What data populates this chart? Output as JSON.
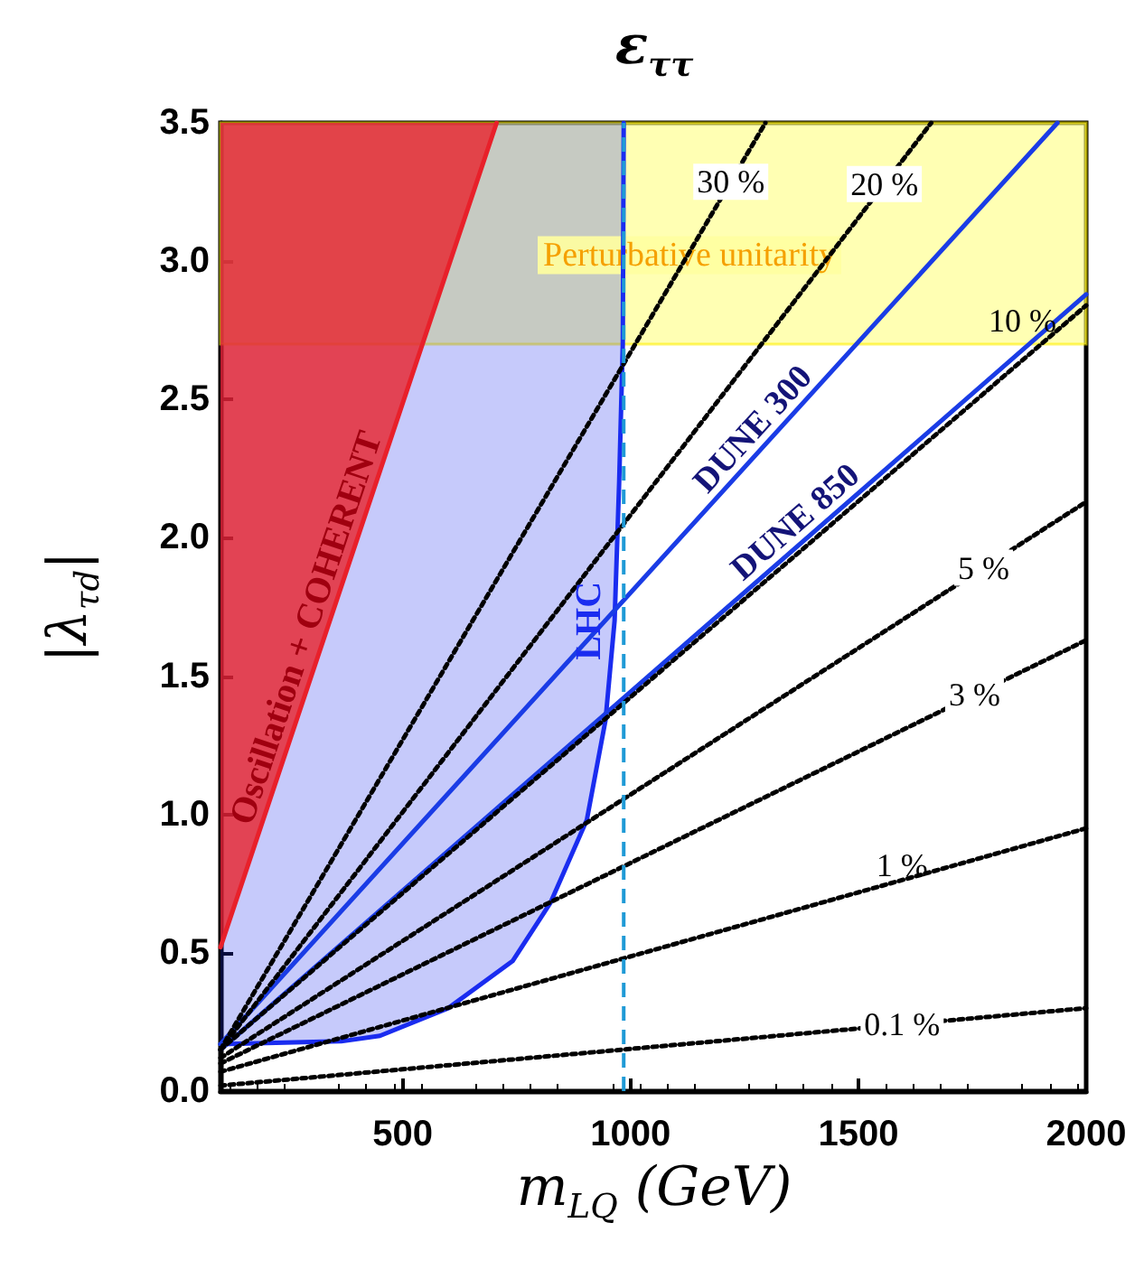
{
  "chart_data": {
    "type": "line",
    "title": "ε$_{ττ}$",
    "xlabel": "m$_{LQ}$ (GeV)",
    "ylabel": "|λ$_{τd}$|",
    "marker": "none",
    "grid": false,
    "xlim": [
      100,
      2000
    ],
    "xticks": [
      500,
      1000,
      1500,
      2000
    ],
    "ylim": [
      0,
      3.5
    ],
    "yticks": [
      {
        "value": 0,
        "label": "0.0"
      },
      {
        "value": 0.5,
        "label": "0.5"
      },
      {
        "value": 1,
        "label": "1.0"
      },
      {
        "value": 1.5,
        "label": "1.5"
      },
      {
        "value": 2,
        "label": "2.0"
      },
      {
        "value": 2.5,
        "label": "2.5"
      },
      {
        "value": 3,
        "label": "3.0"
      },
      {
        "value": 3.5,
        "label": "3.5"
      }
    ],
    "bands": [
      {
        "axis": "y",
        "from": 2.7,
        "to": 3.5,
        "label": "Perturbative unitarity",
        "color": "#ffff80"
      }
    ],
    "ref_lines": [
      {
        "axis": "x",
        "value": 985,
        "color": "#1f9ad6",
        "line_style": "dashed"
      }
    ],
    "series": [
      {
        "name": "Oscillation + COHERENT",
        "color": "#e8202a",
        "x": [
          100,
          706
        ],
        "values": [
          0.52,
          3.5
        ],
        "lower": [
          0.52,
          3.5
        ],
        "upper": [
          3.5,
          3.5
        ]
      },
      {
        "name": "LHC",
        "color": "#1a2cf0",
        "x": [
          100,
          365,
          450,
          600,
          741,
          824,
          904,
          945,
          965,
          975,
          983,
          985
        ],
        "values": [
          0.17,
          0.18,
          0.2,
          0.3,
          0.47,
          0.68,
          0.98,
          1.34,
          1.7,
          2.2,
          2.7,
          3.5
        ],
        "lower": [
          0.17,
          0.18,
          0.2,
          0.3,
          0.47,
          0.68,
          0.98,
          1.34,
          1.7,
          2.2,
          2.7,
          3.5
        ],
        "upper": [
          3.5,
          3.5,
          3.5,
          3.5,
          3.5,
          3.5,
          3.5,
          3.5,
          3.5,
          3.5,
          3.5,
          3.5
        ]
      },
      {
        "name": "DUNE 300",
        "color": "#1a3ce6",
        "x": [
          100,
          1937
        ],
        "values": [
          0.17,
          3.5
        ]
      },
      {
        "name": "DUNE 850",
        "color": "#1a3ce6",
        "x": [
          100,
          2000
        ],
        "values": [
          0.15,
          2.88
        ]
      },
      {
        "name": "30 %",
        "color": "#000000",
        "line_style": "dotted",
        "x": [
          100,
          1296
        ],
        "values": [
          0.15,
          3.5
        ]
      },
      {
        "name": "20 %",
        "color": "#000000",
        "line_style": "dotted",
        "x": [
          100,
          1660
        ],
        "values": [
          0.15,
          3.5
        ]
      },
      {
        "name": "10 %",
        "color": "#000000",
        "line_style": "dotted",
        "x": [
          100,
          2000
        ],
        "values": [
          0.15,
          2.84
        ]
      },
      {
        "name": "5 %",
        "color": "#000000",
        "line_style": "dotted",
        "x": [
          100,
          2000
        ],
        "values": [
          0.12,
          2.13
        ]
      },
      {
        "name": "3 %",
        "color": "#000000",
        "line_style": "dotted",
        "x": [
          100,
          2000
        ],
        "values": [
          0.1,
          1.63
        ]
      },
      {
        "name": "1 %",
        "color": "#000000",
        "line_style": "dotted",
        "x": [
          100,
          2000
        ],
        "values": [
          0.07,
          0.95
        ]
      },
      {
        "name": "0.1 %",
        "color": "#000000",
        "line_style": "dotted",
        "x": [
          100,
          2000
        ],
        "values": [
          0.02,
          0.3
        ]
      }
    ]
  }
}
